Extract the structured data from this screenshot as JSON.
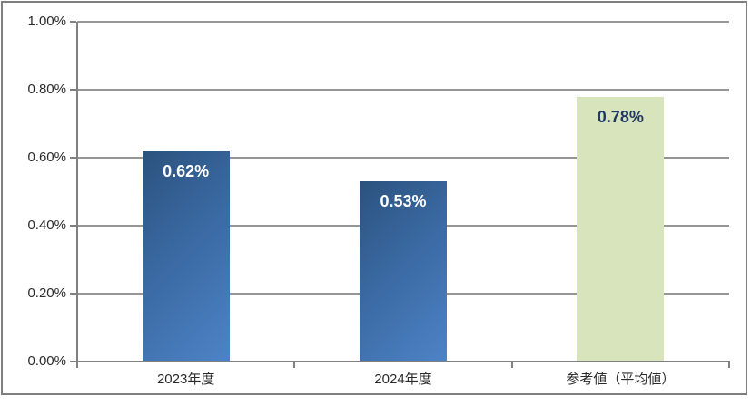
{
  "chart_data": {
    "type": "bar",
    "title": "",
    "xlabel": "",
    "ylabel": "",
    "categories": [
      "2023年度",
      "2024年度",
      "参考値（平均値）"
    ],
    "values": [
      0.62,
      0.53,
      0.78
    ],
    "value_labels": [
      "0.62%",
      "0.53%",
      "0.78%"
    ],
    "ylim": [
      0,
      1.0
    ],
    "y_tick_values": [
      0,
      0.2,
      0.4,
      0.6,
      0.8,
      1.0
    ],
    "y_tick_labels": [
      "0.00%",
      "0.20%",
      "0.40%",
      "0.60%",
      "0.80%",
      "1.00%"
    ],
    "grid": true,
    "legend": false,
    "bar_styles": [
      {
        "fill": "gradient-blue",
        "label_color": "#ffffff"
      },
      {
        "fill": "gradient-blue",
        "label_color": "#ffffff"
      },
      {
        "fill": "solid-green",
        "label_color": "#1f3864"
      }
    ]
  },
  "colors": {
    "blue_gradient_start": "#2b527e",
    "blue_gradient_end": "#4d83c6",
    "green_bar": "#d8e4bc",
    "gridline": "#969696",
    "axis": "#808080",
    "frame_border": "#7f7f7f",
    "axis_text": "#2b2b2b",
    "label_white": "#ffffff",
    "label_navy": "#1f3864"
  }
}
